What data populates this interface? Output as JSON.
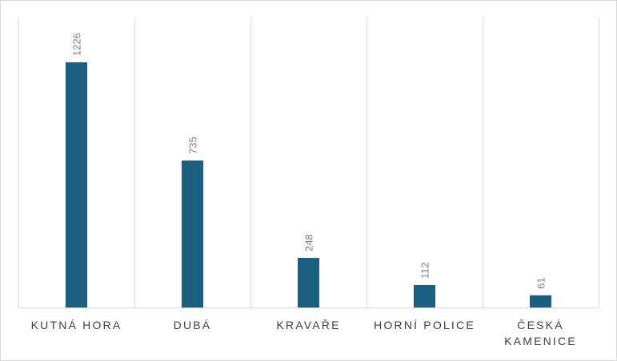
{
  "chart_data": {
    "type": "bar",
    "categories": [
      "KUTNÁ HORA",
      "DUBÁ",
      "KRAVAŘE",
      "HORNÍ POLICE",
      "ČESKÁ KAMENICE"
    ],
    "category_lines": [
      [
        "KUTNÁ HORA"
      ],
      [
        "DUBÁ"
      ],
      [
        "KRAVAŘE"
      ],
      [
        "HORNÍ POLICE"
      ],
      [
        "ČESKÁ",
        "KAMENICE"
      ]
    ],
    "values": [
      1226,
      735,
      248,
      112,
      61
    ],
    "data_labels": [
      "1226",
      "735",
      "248",
      "112",
      "61"
    ],
    "title": "",
    "xlabel": "",
    "ylabel": "",
    "ylim": [
      0,
      1450
    ],
    "grid": "vertical separators",
    "legend": "none",
    "bar_color": "#1a5e80",
    "grid_color": "#d9d9d9"
  }
}
